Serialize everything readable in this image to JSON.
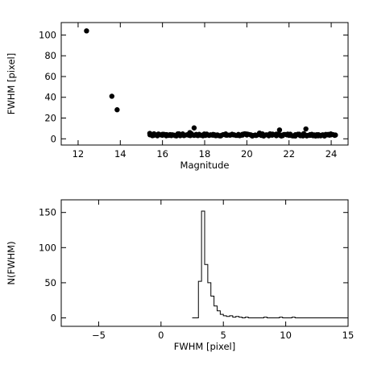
{
  "chart_data": [
    {
      "type": "scatter",
      "xlabel": "Magnitude",
      "ylabel": "FWHM [pixel]",
      "xlim": [
        11.2,
        24.8
      ],
      "ylim": [
        -6,
        112
      ],
      "xticks": [
        12,
        14,
        16,
        18,
        20,
        22,
        24
      ],
      "yticks": [
        0,
        20,
        40,
        60,
        80,
        100
      ],
      "points": [
        {
          "x": 12.4,
          "y": 104
        },
        {
          "x": 13.6,
          "y": 41
        },
        {
          "x": 13.85,
          "y": 28
        },
        {
          "x": 15.4,
          "y": 5.2
        },
        {
          "x": 15.6,
          "y": 4.8
        },
        {
          "x": 15.8,
          "y": 4.5
        },
        {
          "x": 16.0,
          "y": 4.3
        },
        {
          "x": 16.2,
          "y": 4.0
        },
        {
          "x": 16.45,
          "y": 3.8
        },
        {
          "x": 16.7,
          "y": 3.7
        },
        {
          "x": 17.0,
          "y": 3.6
        },
        {
          "x": 17.2,
          "y": 3.8
        },
        {
          "x": 17.3,
          "y": 6.0
        },
        {
          "x": 17.5,
          "y": 10.5
        },
        {
          "x": 17.6,
          "y": 4.2
        },
        {
          "x": 17.85,
          "y": 3.5
        },
        {
          "x": 18.0,
          "y": 3.6
        },
        {
          "x": 18.2,
          "y": 3.4
        },
        {
          "x": 18.4,
          "y": 3.5
        },
        {
          "x": 18.6,
          "y": 3.7
        },
        {
          "x": 18.8,
          "y": 3.4
        },
        {
          "x": 19.0,
          "y": 3.6
        },
        {
          "x": 19.2,
          "y": 3.5
        },
        {
          "x": 19.4,
          "y": 3.8
        },
        {
          "x": 19.6,
          "y": 3.4
        },
        {
          "x": 19.8,
          "y": 3.6
        },
        {
          "x": 20.0,
          "y": 3.7
        },
        {
          "x": 20.2,
          "y": 3.5
        },
        {
          "x": 20.4,
          "y": 3.6
        },
        {
          "x": 20.6,
          "y": 5.5
        },
        {
          "x": 20.8,
          "y": 3.6
        },
        {
          "x": 21.0,
          "y": 3.7
        },
        {
          "x": 21.2,
          "y": 3.5
        },
        {
          "x": 21.4,
          "y": 4.5
        },
        {
          "x": 21.55,
          "y": 8.5
        },
        {
          "x": 21.7,
          "y": 3.6
        },
        {
          "x": 21.9,
          "y": 3.8
        },
        {
          "x": 22.1,
          "y": 3.5
        },
        {
          "x": 22.3,
          "y": 3.9
        },
        {
          "x": 22.5,
          "y": 3.6
        },
        {
          "x": 22.7,
          "y": 5.0
        },
        {
          "x": 22.8,
          "y": 9.5
        },
        {
          "x": 23.0,
          "y": 4.0
        },
        {
          "x": 23.2,
          "y": 3.7
        },
        {
          "x": 23.4,
          "y": 3.9
        },
        {
          "x": 23.6,
          "y": 3.8
        },
        {
          "x": 23.8,
          "y": 4.0
        },
        {
          "x": 24.0,
          "y": 3.9
        },
        {
          "x": 24.2,
          "y": 3.6
        }
      ],
      "band": {
        "x_start": 15.4,
        "x_end": 24.2,
        "y_low": 2.5,
        "y_high": 5.0
      }
    },
    {
      "type": "histogram",
      "xlabel": "FWHM [pixel]",
      "ylabel": "N(FWHM)",
      "xlim": [
        -8,
        15
      ],
      "ylim": [
        -12,
        168
      ],
      "xticks": [
        -5,
        0,
        5,
        10,
        15
      ],
      "yticks": [
        0,
        50,
        100,
        150
      ],
      "bin_width": 0.25,
      "bins": [
        {
          "x": 2.5,
          "n": 0
        },
        {
          "x": 2.75,
          "n": 0
        },
        {
          "x": 3.0,
          "n": 52
        },
        {
          "x": 3.25,
          "n": 152
        },
        {
          "x": 3.5,
          "n": 76
        },
        {
          "x": 3.75,
          "n": 50
        },
        {
          "x": 4.0,
          "n": 31
        },
        {
          "x": 4.25,
          "n": 17
        },
        {
          "x": 4.5,
          "n": 10
        },
        {
          "x": 4.75,
          "n": 5
        },
        {
          "x": 5.0,
          "n": 3
        },
        {
          "x": 5.25,
          "n": 2
        },
        {
          "x": 5.5,
          "n": 3
        },
        {
          "x": 5.75,
          "n": 1
        },
        {
          "x": 6.0,
          "n": 2
        },
        {
          "x": 6.25,
          "n": 1
        },
        {
          "x": 6.5,
          "n": 0
        },
        {
          "x": 6.75,
          "n": 1
        },
        {
          "x": 7.0,
          "n": 0
        },
        {
          "x": 7.25,
          "n": 0
        },
        {
          "x": 7.5,
          "n": 0
        },
        {
          "x": 7.75,
          "n": 0
        },
        {
          "x": 8.0,
          "n": 0
        },
        {
          "x": 8.25,
          "n": 1
        },
        {
          "x": 8.5,
          "n": 0
        },
        {
          "x": 8.75,
          "n": 0
        },
        {
          "x": 9.0,
          "n": 0
        },
        {
          "x": 9.25,
          "n": 0
        },
        {
          "x": 9.5,
          "n": 1
        },
        {
          "x": 9.75,
          "n": 0
        },
        {
          "x": 10.0,
          "n": 0
        },
        {
          "x": 10.25,
          "n": 0
        },
        {
          "x": 10.5,
          "n": 1
        },
        {
          "x": 10.75,
          "n": 0
        },
        {
          "x": 11.0,
          "n": 0
        },
        {
          "x": 14.75,
          "n": 0
        }
      ]
    }
  ]
}
